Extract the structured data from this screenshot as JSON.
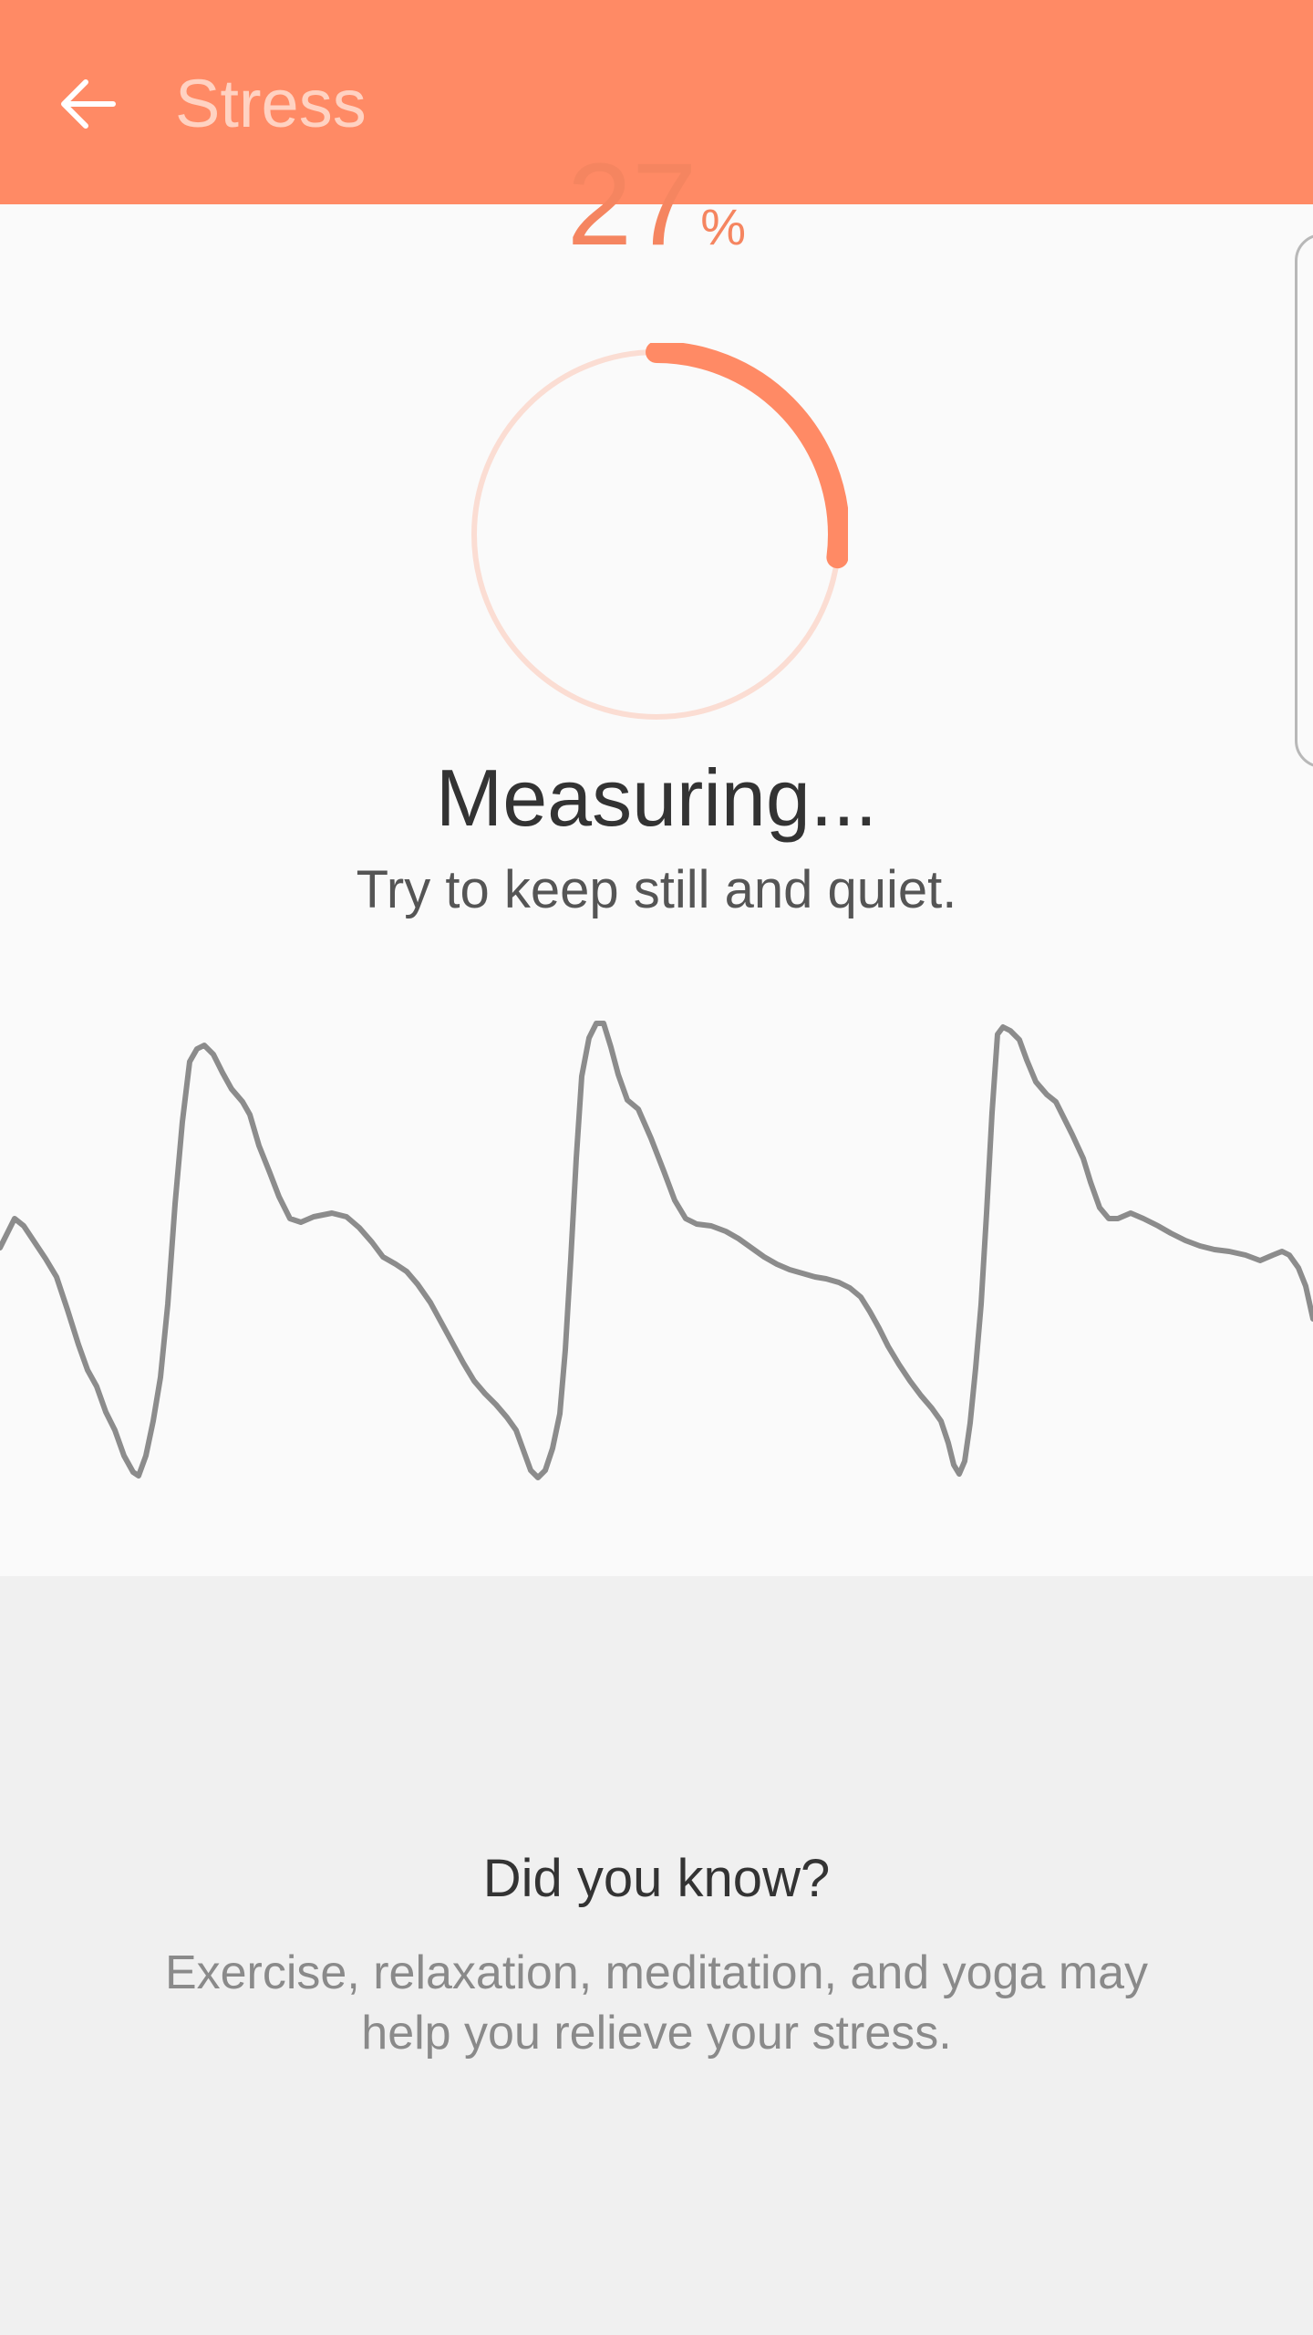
{
  "appbar": {
    "title": "Stress",
    "back_icon": "arrow-left-icon",
    "background_color": "#ff8a65",
    "title_color": "#ffd2c2"
  },
  "measurement": {
    "progress_percent": 27,
    "progress_value": "27",
    "progress_unit": "%",
    "progress_color": "#ff8a65",
    "track_color": "#fbddd3",
    "status": "Measuring...",
    "instruction": "Try to keep still and quiet."
  },
  "tip": {
    "title": "Did you know?",
    "body": "Exercise, relaxation, meditation, and yoga may help you relieve your stress."
  }
}
